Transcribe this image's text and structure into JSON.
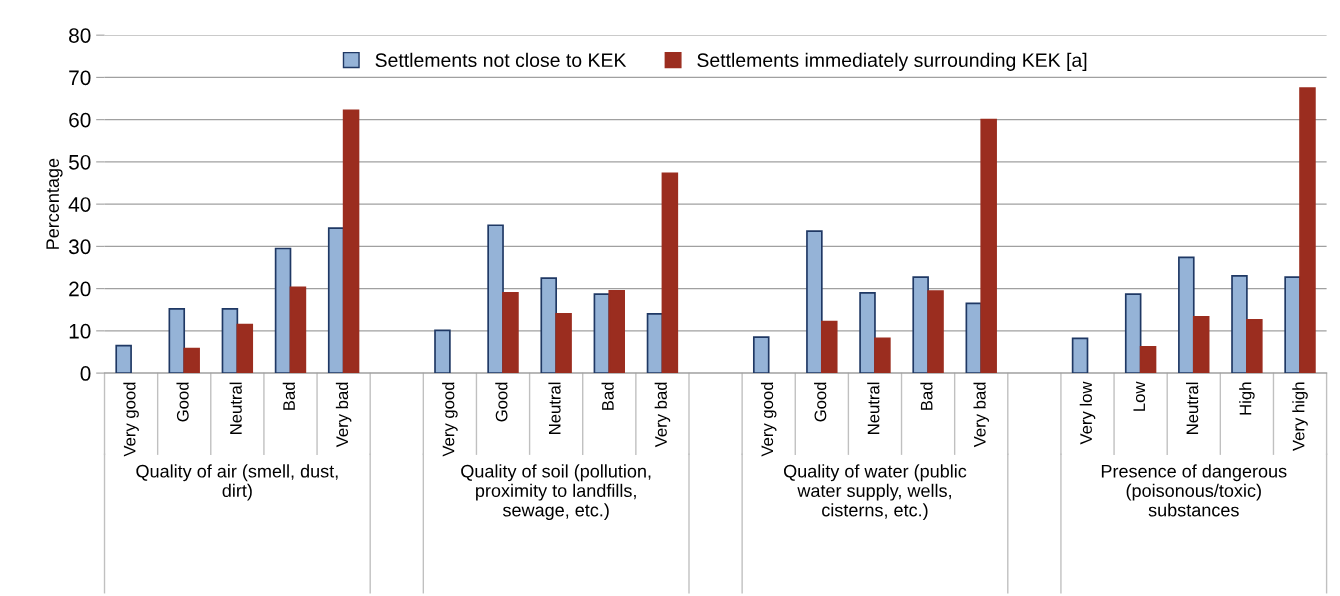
{
  "chart_data": {
    "type": "bar",
    "ylabel": "Percentage",
    "categories": [
      "Very good",
      "Good",
      "Neutral",
      "Bad",
      "Very bad",
      null,
      "Very good",
      "Good",
      "Neutral",
      "Bad",
      "Very bad",
      null,
      "Very good",
      "Good",
      "Neutral",
      "Bad",
      "Very bad",
      null,
      "Very low",
      "Low",
      "Neutral",
      "High",
      "Very high"
    ],
    "series": [
      {
        "name": "Settlements not close to KEK",
        "color": "#95b3d7",
        "values": [
          6.5,
          15.2,
          15.2,
          29.5,
          34.3,
          null,
          10.1,
          35,
          22.5,
          18.7,
          14,
          null,
          8.5,
          33.6,
          19,
          22.7,
          16.5,
          null,
          8.2,
          18.7,
          27.4,
          23,
          22.7
        ]
      },
      {
        "name": "Settlements immediately surrounding KEK [a]",
        "color": "#9b2d1f",
        "values": [
          null,
          5.8,
          11.5,
          20.3,
          62.2,
          null,
          null,
          19,
          14,
          19.5,
          47.3,
          null,
          null,
          12.2,
          8.2,
          19.4,
          60,
          null,
          null,
          6.2,
          13.3,
          12.6,
          67.5
        ]
      }
    ],
    "annotations": [
      "Quality of air (smell, dust, dirt)",
      "Quality of soil (pollution, proximity to landfills, sewage, etc.)",
      "Quality of water (public water supply, wells, cisterns, etc.)",
      "Presence of dangerous (poisonous/toxic) substances"
    ],
    "ylim": [
      0,
      80
    ],
    "yticks": [
      0,
      10,
      20,
      30,
      40,
      50,
      60,
      70,
      80
    ],
    "grid": "y",
    "legend": "top"
  }
}
